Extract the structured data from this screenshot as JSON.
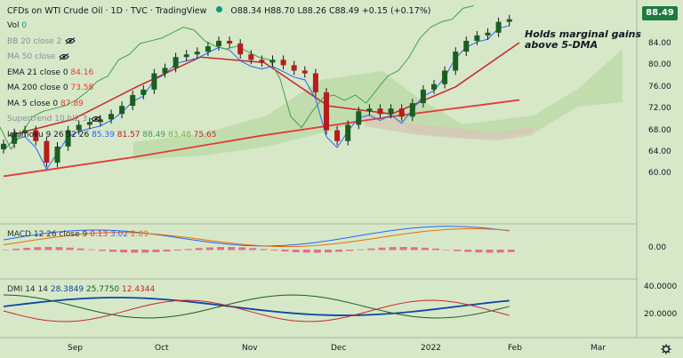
{
  "header": {
    "symbol": "CFDs on WTI Crude Oil · 1D · TVC · TradingView",
    "ohlc": "O88.34 H88.70 L88.26 C88.49 +0.15 (+0.17%)"
  },
  "last_price": "88.49",
  "annotation": [
    "Holds marginal gains",
    "above 5-DMA"
  ],
  "indicators": [
    {
      "name": "Vol",
      "value": "0",
      "value_color": "#089981"
    },
    {
      "name": "BB 20 close 2",
      "hidden": true
    },
    {
      "name": "MA 50 close",
      "hidden": true
    },
    {
      "name": "EMA 21 close 0",
      "value": "84.16",
      "value_color": "#e53935"
    },
    {
      "name": "MA 200 close 0",
      "value": "73.58",
      "value_color": "#e53935"
    },
    {
      "name": "MA 5 close 0",
      "value": "87.89",
      "value_color": "#e53935"
    },
    {
      "name": "Supertrend 10 hl2 3",
      "hidden": true
    },
    {
      "name": "Ichimoku 9 26 52 26",
      "values": [
        "85.39",
        "81.57",
        "88.49",
        "83.48",
        "75.65"
      ],
      "colors": [
        "#2962ff",
        "#b71c1c",
        "#43a047",
        "#7cb342",
        "#c62828"
      ]
    }
  ],
  "macd": {
    "label": "MACD 12 26 close 9",
    "values": [
      "0.13",
      "3.02",
      "2.89"
    ],
    "colors": [
      "#e91e63",
      "#2962ff",
      "#ef6c00"
    ]
  },
  "dmi": {
    "label": "DMI 14 14",
    "values": [
      "28.3849",
      "25.7750",
      "12.4344"
    ],
    "colors": [
      "#0d47a1",
      "#1b5e20",
      "#c62828"
    ]
  },
  "price_axis": [
    "84.00",
    "80.00",
    "76.00",
    "72.00",
    "68.00",
    "64.00",
    "60.00"
  ],
  "macd_axis": [
    "0.00"
  ],
  "dmi_axis": [
    "40.0000",
    "20.0000"
  ],
  "time_axis": [
    "Sep",
    "Oct",
    "Nov",
    "Dec",
    "2022",
    "Feb",
    "Mar"
  ],
  "chart_data": {
    "type": "line",
    "title": "CFDs on WTI Crude Oil",
    "ylim": [
      58,
      90
    ],
    "series": [
      {
        "name": "Close",
        "values": [
          65.5,
          67.5,
          68.0,
          66.0,
          62.0,
          65.0,
          68.0,
          69.0,
          69.5,
          70.0,
          71.0,
          72.5,
          74.5,
          75.5,
          78.5,
          79.5,
          81.5,
          82.0,
          82.5,
          83.5,
          84.5,
          84.0,
          82.0,
          81.0,
          80.5,
          81.0,
          80.0,
          79.0,
          78.5,
          75.0,
          68.0,
          66.0,
          69.0,
          71.5,
          72.0,
          71.0,
          72.0,
          70.5,
          73.0,
          75.5,
          76.5,
          79.0,
          82.5,
          84.5,
          85.5,
          86.0,
          88.0,
          88.49
        ]
      },
      {
        "name": "MA 200",
        "values": [
          59.5,
          63.0,
          67.0,
          70.5,
          73.58
        ]
      },
      {
        "name": "EMA 21",
        "values": [
          67.0,
          70.0,
          76.0,
          81.5,
          80.5,
          72.5,
          71.0,
          76.0,
          84.16
        ]
      }
    ]
  }
}
